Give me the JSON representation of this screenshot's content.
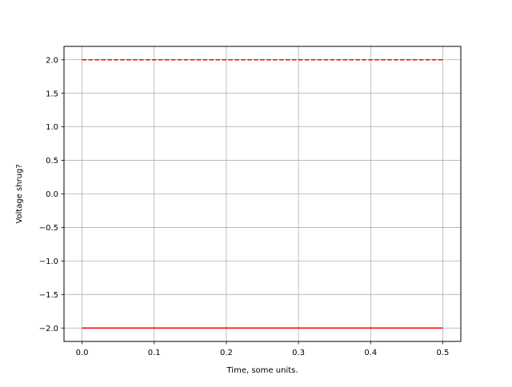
{
  "chart_data": {
    "type": "line",
    "title": "",
    "xlabel": "Time, some units.",
    "ylabel": "Voltage shrug?",
    "xlim": [
      -0.025,
      0.525
    ],
    "ylim": [
      -2.2,
      2.2
    ],
    "grid": true,
    "xticks": [
      0.0,
      0.1,
      0.2,
      0.3,
      0.4,
      0.5
    ],
    "xtick_labels": [
      "0.0",
      "0.1",
      "0.2",
      "0.3",
      "0.4",
      "0.5"
    ],
    "yticks": [
      -2.0,
      -1.5,
      -1.0,
      -0.5,
      0.0,
      0.5,
      1.0,
      1.5,
      2.0
    ],
    "ytick_labels": [
      "−2.0",
      "−1.5",
      "−1.0",
      "−0.5",
      "0.0",
      "0.5",
      "1.0",
      "1.5",
      "2.0"
    ],
    "series": [
      {
        "x": [
          0.0,
          0.5
        ],
        "y": [
          2.0,
          2.0
        ],
        "color": "#ff0000",
        "linestyle": "dashed"
      },
      {
        "x": [
          0.0,
          0.5
        ],
        "y": [
          -2.0,
          -2.0
        ],
        "color": "#ff0000",
        "linestyle": "solid"
      }
    ]
  }
}
